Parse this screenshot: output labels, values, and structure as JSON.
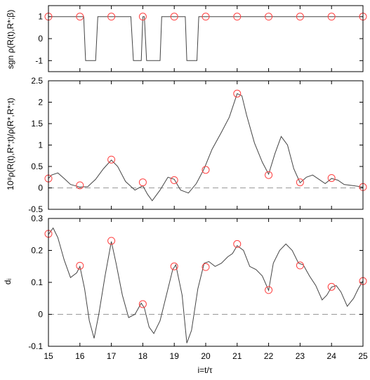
{
  "chart_data": [
    {
      "type": "line",
      "ylabel": "sgn ρ(R(t),R*;β)",
      "xlim": [
        15,
        25
      ],
      "ylim": [
        -1.5,
        1.5
      ],
      "yticks": [
        -1,
        0,
        1
      ],
      "xticks": [
        15,
        16,
        17,
        18,
        19,
        20,
        21,
        22,
        23,
        24,
        25
      ],
      "show_xtick_labels": false,
      "zero_line": false,
      "curve": {
        "x": [
          15,
          16.12,
          16.18,
          16.5,
          16.57,
          17.62,
          17.7,
          17.95,
          18.0,
          18.05,
          18.12,
          18.55,
          18.6,
          19.35,
          19.4,
          19.72,
          19.78,
          25
        ],
        "y": [
          1,
          1,
          -1,
          -1,
          1,
          1,
          -1,
          -1,
          1,
          1,
          -1,
          -1,
          1,
          1,
          -1,
          -1,
          1,
          1
        ]
      },
      "markers": {
        "x": [
          15,
          16,
          17,
          18,
          19,
          20,
          21,
          22,
          23,
          24,
          25
        ],
        "y": [
          1,
          1,
          1,
          1,
          1,
          1,
          1,
          1,
          1,
          1,
          1
        ]
      }
    },
    {
      "type": "line",
      "ylabel": "10⁸ρ(R(t),R*;t)/ρ(R*,R*;t)",
      "xlim": [
        15,
        25
      ],
      "ylim": [
        -0.5,
        2.5
      ],
      "yticks": [
        -0.5,
        0,
        0.5,
        1,
        1.5,
        2,
        2.5
      ],
      "xticks": [
        15,
        16,
        17,
        18,
        19,
        20,
        21,
        22,
        23,
        24,
        25
      ],
      "show_xtick_labels": false,
      "zero_line": true,
      "curve": {
        "x": [
          15,
          15.1,
          15.3,
          15.5,
          15.7,
          16.0,
          16.25,
          16.5,
          16.75,
          17.0,
          17.2,
          17.45,
          17.75,
          18.0,
          18.15,
          18.3,
          18.55,
          18.8,
          19.0,
          19.2,
          19.45,
          19.7,
          19.95,
          20.2,
          20.5,
          20.75,
          21.0,
          21.15,
          21.3,
          21.55,
          21.8,
          22.0,
          22.2,
          22.4,
          22.6,
          22.8,
          23.0,
          23.2,
          23.4,
          23.6,
          23.8,
          24.0,
          24.2,
          24.4,
          24.7,
          25
        ],
        "y": [
          0.22,
          0.3,
          0.35,
          0.22,
          0.08,
          0.02,
          0.03,
          0.2,
          0.45,
          0.65,
          0.5,
          0.15,
          -0.05,
          0.05,
          -0.15,
          -0.3,
          -0.05,
          0.25,
          0.2,
          -0.05,
          -0.12,
          0.1,
          0.45,
          0.9,
          1.3,
          1.65,
          2.2,
          2.15,
          1.7,
          1.05,
          0.6,
          0.32,
          0.8,
          1.2,
          1.0,
          0.45,
          0.12,
          0.25,
          0.3,
          0.2,
          0.1,
          0.22,
          0.18,
          0.08,
          0.05,
          0.02
        ]
      },
      "markers": {
        "x": [
          15,
          16,
          17,
          18,
          19,
          20,
          21,
          22,
          23,
          24,
          25
        ],
        "y": [
          0.22,
          0.06,
          0.66,
          0.13,
          0.18,
          0.42,
          2.2,
          0.3,
          0.13,
          0.23,
          0.02
        ]
      }
    },
    {
      "type": "line",
      "ylabel": "dᵢ",
      "xlabel": "i=t/τ",
      "xlim": [
        15,
        25
      ],
      "ylim": [
        -0.1,
        0.3
      ],
      "yticks": [
        -0.1,
        0,
        0.1,
        0.2,
        0.3
      ],
      "xticks": [
        15,
        16,
        17,
        18,
        19,
        20,
        21,
        22,
        23,
        24,
        25
      ],
      "show_xtick_labels": true,
      "zero_line": true,
      "curve": {
        "x": [
          15,
          15.15,
          15.3,
          15.5,
          15.7,
          15.9,
          16.0,
          16.15,
          16.3,
          16.45,
          16.6,
          16.8,
          17.0,
          17.15,
          17.35,
          17.55,
          17.75,
          17.95,
          18.05,
          18.2,
          18.35,
          18.55,
          18.75,
          18.95,
          19.05,
          19.25,
          19.4,
          19.55,
          19.75,
          19.95,
          20.1,
          20.3,
          20.5,
          20.7,
          20.85,
          21.0,
          21.2,
          21.4,
          21.6,
          21.8,
          22.0,
          22.15,
          22.35,
          22.55,
          22.75,
          22.95,
          23.1,
          23.3,
          23.5,
          23.7,
          23.85,
          24.0,
          24.15,
          24.3,
          24.5,
          24.7,
          24.85,
          25
        ],
        "y": [
          0.25,
          0.27,
          0.24,
          0.17,
          0.115,
          0.13,
          0.15,
          0.08,
          -0.02,
          -0.075,
          0.0,
          0.12,
          0.228,
          0.16,
          0.06,
          -0.01,
          0.0,
          0.035,
          0.02,
          -0.04,
          -0.06,
          -0.02,
          0.06,
          0.14,
          0.155,
          0.06,
          -0.09,
          -0.05,
          0.08,
          0.16,
          0.165,
          0.15,
          0.16,
          0.18,
          0.19,
          0.215,
          0.2,
          0.15,
          0.14,
          0.12,
          0.075,
          0.16,
          0.2,
          0.22,
          0.2,
          0.16,
          0.155,
          0.12,
          0.09,
          0.045,
          0.06,
          0.085,
          0.09,
          0.07,
          0.025,
          0.05,
          0.08,
          0.105
        ]
      },
      "markers": {
        "x": [
          15,
          16,
          17,
          18,
          19,
          20,
          21,
          22,
          23,
          24,
          25
        ],
        "y": [
          0.252,
          0.152,
          0.23,
          0.032,
          0.15,
          0.148,
          0.22,
          0.076,
          0.153,
          0.086,
          0.104
        ]
      }
    }
  ]
}
